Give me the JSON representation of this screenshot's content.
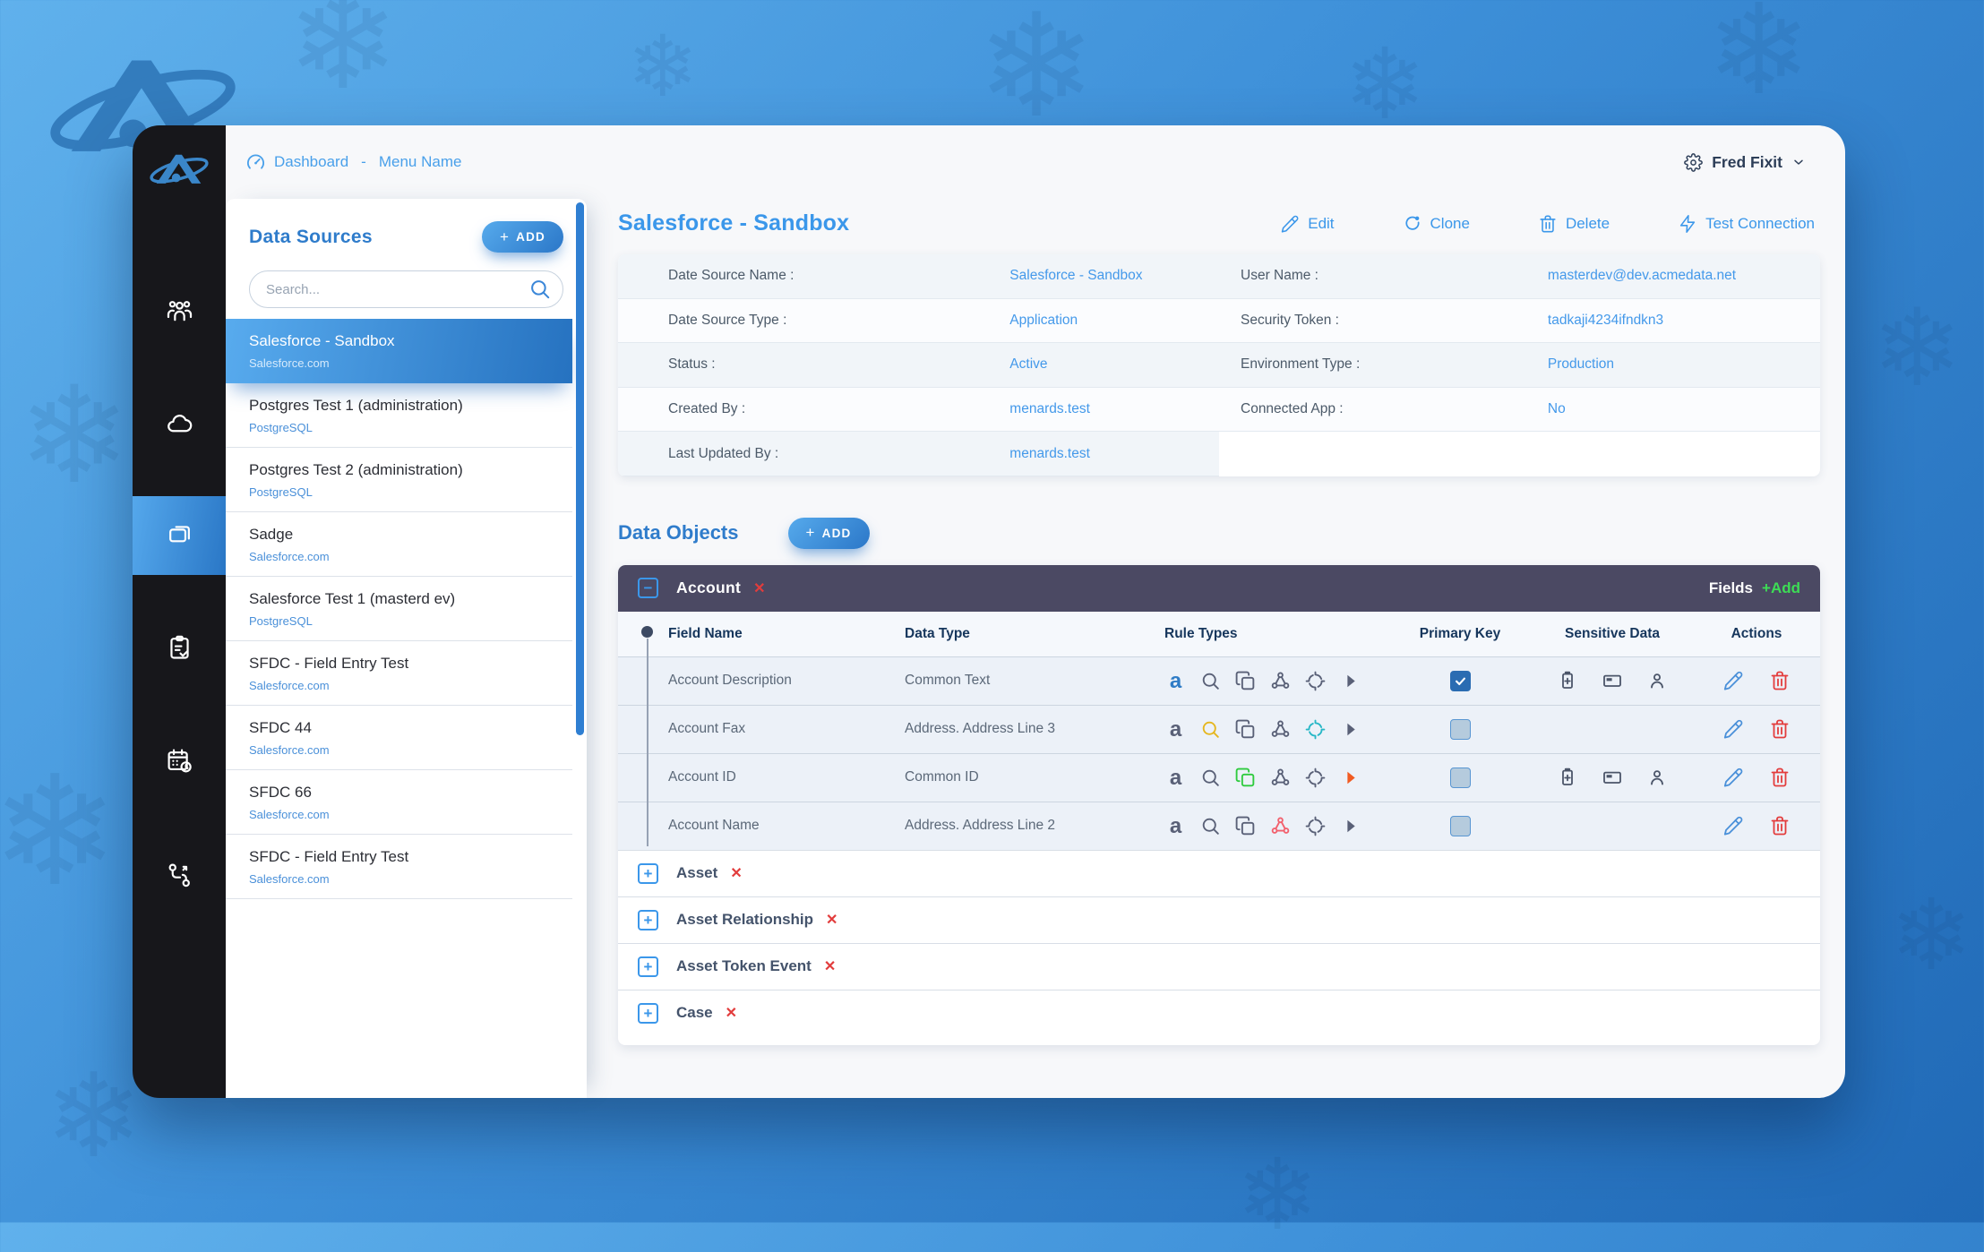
{
  "symbols": {
    "plus": "+",
    "minus": "−",
    "close": "✕",
    "dash": "-",
    "text_rule": "a",
    "snowflake": "❄"
  },
  "colors": {
    "accent": "#3b97ea",
    "add_gradient_start": "#56aaec",
    "add_gradient_end": "#2b77c8",
    "danger": "#e23c3c",
    "success": "#3ddc55",
    "account_bar": "#4b4963",
    "rule_gray": "#596077",
    "rule_blue": "#2f7cc6",
    "rule_yellow": "#e5b61e",
    "rule_cyan": "#27b7c6",
    "rule_green": "#2fcb3f",
    "rule_orange": "#f15b22",
    "rule_red": "#f2616e"
  },
  "header": {
    "breadcrumb": {
      "dashboard_label": "Dashboard",
      "menu_label": "Menu Name"
    },
    "user": {
      "name": "Fred Fixit"
    }
  },
  "sidebar": {
    "items": [
      {
        "icon": "users-icon"
      },
      {
        "icon": "cloud-icon"
      },
      {
        "icon": "data-sources-icon",
        "selected": true
      },
      {
        "icon": "clipboard-check-icon"
      },
      {
        "icon": "calendar-clock-icon"
      },
      {
        "icon": "workflow-icon"
      }
    ]
  },
  "data_sources": {
    "title": "Data Sources",
    "add_label": "ADD",
    "search_placeholder": "Search...",
    "items": [
      {
        "name": "Salesforce - Sandbox",
        "type": "Salesforce.com",
        "selected": true
      },
      {
        "name": "Postgres Test 1 (administration)",
        "type": "PostgreSQL",
        "selected": false
      },
      {
        "name": "Postgres Test 2 (administration)",
        "type": "PostgreSQL",
        "selected": false
      },
      {
        "name": "Sadge",
        "type": "Salesforce.com",
        "selected": false
      },
      {
        "name": "Salesforce Test 1 (masterd ev)",
        "type": "PostgreSQL",
        "selected": false
      },
      {
        "name": "SFDC - Field Entry Test",
        "type": "Salesforce.com",
        "selected": false
      },
      {
        "name": "SFDC 44",
        "type": "Salesforce.com",
        "selected": false
      },
      {
        "name": "SFDC 66",
        "type": "Salesforce.com",
        "selected": false
      },
      {
        "name": "SFDC - Field Entry Test",
        "type": "Salesforce.com",
        "selected": false
      }
    ]
  },
  "detail": {
    "title": "Salesforce - Sandbox",
    "actions": [
      {
        "label": "Edit",
        "icon": "pencil-icon"
      },
      {
        "label": "Clone",
        "icon": "clone-icon"
      },
      {
        "label": "Delete",
        "icon": "trash-icon"
      },
      {
        "label": "Test Connection",
        "icon": "bolt-icon"
      }
    ],
    "left_rows": [
      [
        "Date Source Name :",
        "Salesforce - Sandbox"
      ],
      [
        "Date Source Type :",
        "Application"
      ],
      [
        "Status :",
        "Active"
      ],
      [
        "Created By :",
        "menards.test"
      ],
      [
        "Last Updated By :",
        "menards.test"
      ]
    ],
    "right_rows": [
      [
        "User Name :",
        "masterdev@dev.acmedata.net"
      ],
      [
        "Security Token :",
        "tadkaji4234ifndkn3"
      ],
      [
        "Environment Type :",
        "Production"
      ],
      [
        "Connected App :",
        "No"
      ]
    ]
  },
  "data_objects": {
    "title": "Data Objects",
    "add_label": "ADD",
    "account": {
      "name": "Account",
      "fields_label": "Fields",
      "fields_add_label": "+Add",
      "columns": [
        "Field Name",
        "Data Type",
        "Rule Types",
        "Primary Key",
        "Sensitive Data",
        "Actions"
      ],
      "rows": [
        {
          "field": "Account Description",
          "data_type": "Common Text",
          "rules": [
            "blue",
            "gray",
            "gray",
            "gray",
            "gray",
            "gray"
          ],
          "primary_key": true,
          "sensitive": true
        },
        {
          "field": "Account Fax",
          "data_type": "Address. Address Line 3",
          "rules": [
            "gray",
            "yellow",
            "gray",
            "gray",
            "cyan",
            "gray"
          ],
          "primary_key": false,
          "sensitive": false
        },
        {
          "field": "Account ID",
          "data_type": "Common ID",
          "rules": [
            "gray",
            "gray",
            "green",
            "gray",
            "gray",
            "orange"
          ],
          "primary_key": false,
          "sensitive": true
        },
        {
          "field": "Account Name",
          "data_type": "Address. Address Line 2",
          "rules": [
            "gray",
            "gray",
            "gray",
            "red",
            "gray",
            "gray"
          ],
          "primary_key": false,
          "sensitive": false
        }
      ]
    },
    "collapsed_objects": [
      "Asset",
      "Asset Relationship",
      "Asset Token Event",
      "Case"
    ]
  }
}
